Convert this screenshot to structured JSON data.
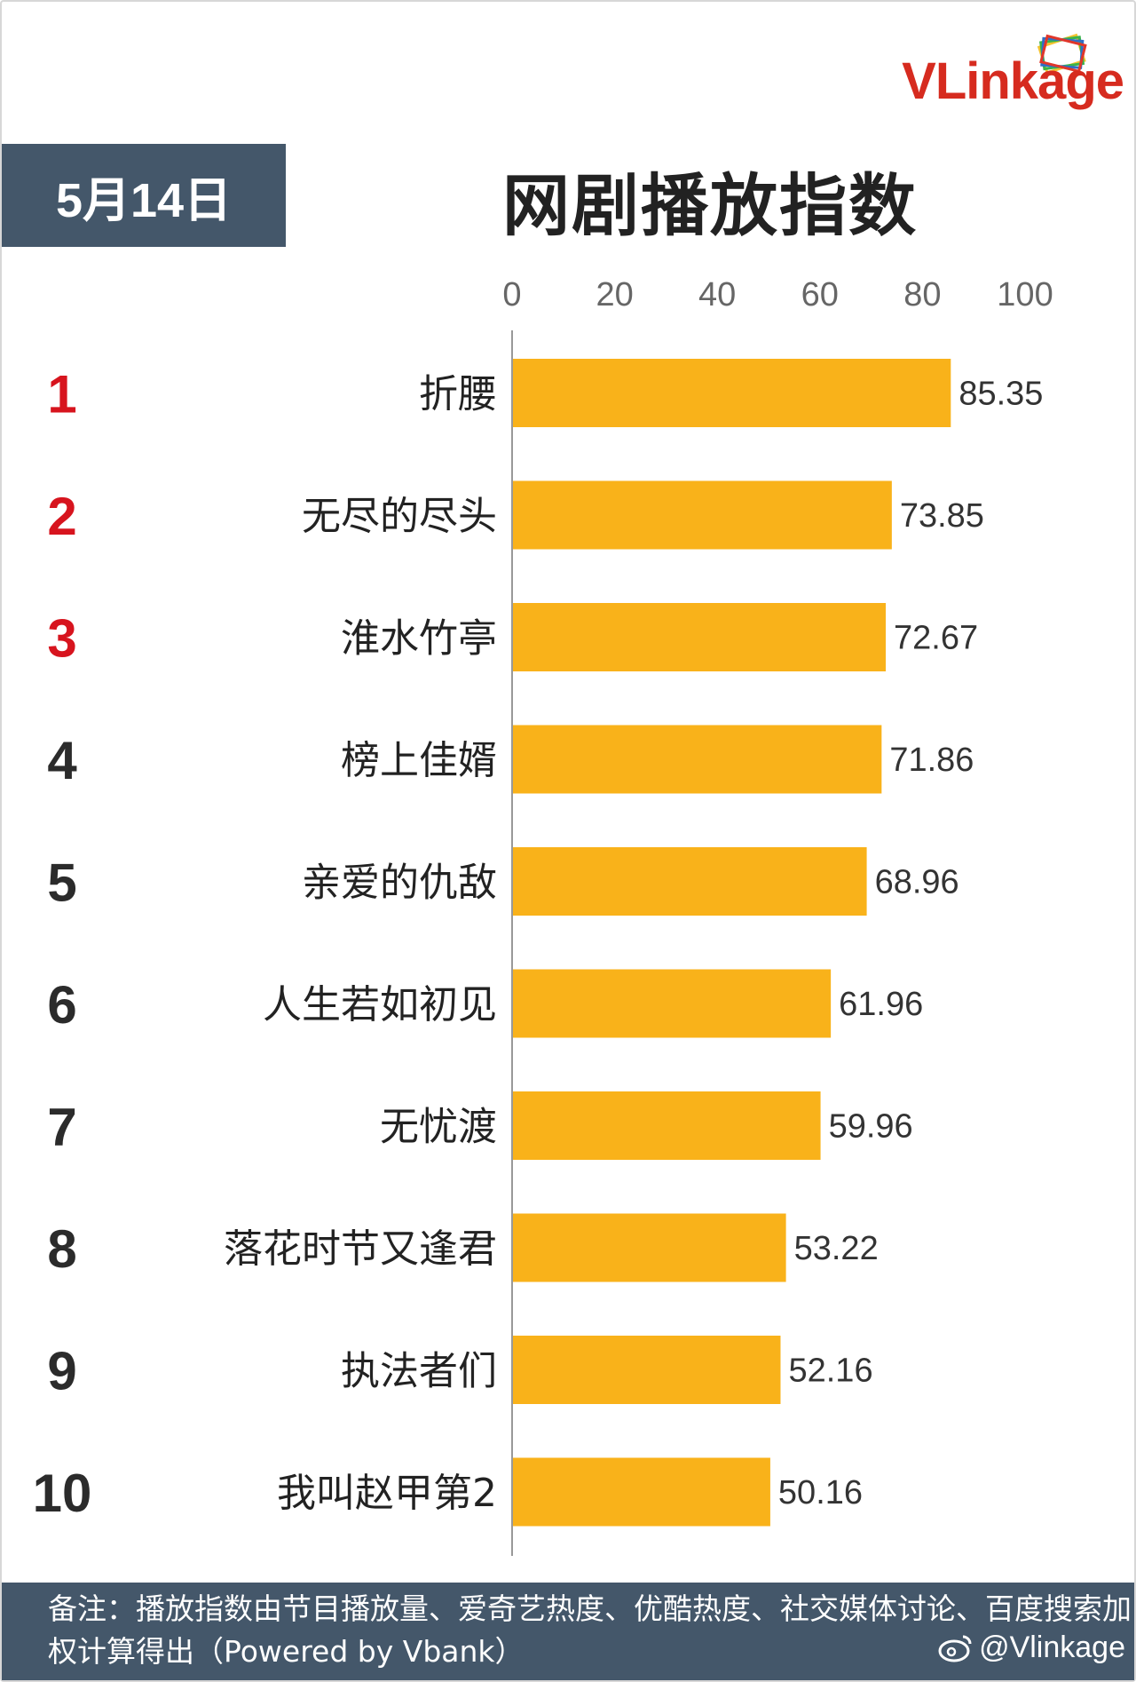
{
  "brand": {
    "logo_text_v": "V",
    "logo_text_rest": "Linkage",
    "logo_icon": "stacked-cards-icon"
  },
  "date_label": "5月14日",
  "title": "网剧播放指数",
  "colors": {
    "bar": "#F9B21A",
    "rank_top": "#D7141E",
    "rank_other": "#2B2B2B",
    "header_bg": "#44576A"
  },
  "chart_data": {
    "type": "bar",
    "orientation": "horizontal",
    "title": "网剧播放指数",
    "ranks": [
      "1",
      "2",
      "3",
      "4",
      "5",
      "6",
      "7",
      "8",
      "9",
      "10"
    ],
    "categories": [
      "折腰",
      "无尽的尽头",
      "淮水竹亭",
      "榜上佳婿",
      "亲爱的仇敌",
      "人生若如初见",
      "无忧渡",
      "落花时节又逢君",
      "执法者们",
      "我叫赵甲第2"
    ],
    "values": [
      85.35,
      73.85,
      72.67,
      71.86,
      68.96,
      61.96,
      59.96,
      53.22,
      52.16,
      50.16
    ],
    "value_labels": [
      "85.35",
      "73.85",
      "72.67",
      "71.86",
      "68.96",
      "61.96",
      "59.96",
      "53.22",
      "52.16",
      "50.16"
    ],
    "xlim": [
      0,
      100
    ],
    "xticks": [
      "0",
      "20",
      "40",
      "60",
      "80",
      "100"
    ],
    "axis_position": "top",
    "grid": false,
    "legend": "none"
  },
  "footer": {
    "note": "备注：播放指数由节目播放量、爱奇艺热度、优酷热度、社交媒体讨论、百度搜索加权计算得出（Powered by Vbank）",
    "watermark": "@Vlinkage",
    "watermark_icon": "weibo-icon"
  }
}
